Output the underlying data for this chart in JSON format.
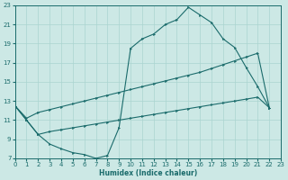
{
  "bg_color": "#cce8e5",
  "grid_color": "#aad4d0",
  "line_color": "#1a6b6b",
  "xlabel": "Humidex (Indice chaleur)",
  "xlim": [
    0,
    23
  ],
  "ylim": [
    7,
    23
  ],
  "xticks": [
    0,
    1,
    2,
    3,
    4,
    5,
    6,
    7,
    8,
    9,
    10,
    11,
    12,
    13,
    14,
    15,
    16,
    17,
    18,
    19,
    20,
    21,
    22,
    23
  ],
  "yticks": [
    7,
    9,
    11,
    13,
    15,
    17,
    19,
    21,
    23
  ],
  "curve_bell_x": [
    0,
    1,
    2,
    3,
    4,
    5,
    6,
    7,
    8,
    9,
    10,
    11,
    12,
    13,
    14,
    15,
    16,
    17,
    18,
    19,
    20,
    21,
    22
  ],
  "curve_bell_y": [
    12.5,
    11.0,
    9.5,
    8.5,
    8.0,
    7.6,
    7.4,
    7.0,
    7.3,
    10.2,
    18.5,
    19.5,
    20.0,
    21.0,
    21.5,
    22.8,
    22.0,
    21.2,
    19.5,
    18.6,
    16.5,
    14.5,
    12.3
  ],
  "curve_upper_linear_x": [
    0,
    1,
    2,
    3,
    4,
    5,
    6,
    7,
    8,
    9,
    10,
    11,
    12,
    13,
    14,
    15,
    16,
    17,
    18,
    19,
    20,
    21,
    22
  ],
  "curve_upper_linear_y": [
    12.5,
    11.2,
    11.8,
    12.1,
    12.4,
    12.7,
    13.0,
    13.3,
    13.6,
    13.9,
    14.2,
    14.5,
    14.8,
    15.1,
    15.4,
    15.7,
    16.0,
    16.4,
    16.8,
    17.2,
    17.6,
    18.0,
    12.3
  ],
  "curve_lower_linear_x": [
    0,
    1,
    2,
    3,
    4,
    5,
    6,
    7,
    8,
    9,
    10,
    11,
    12,
    13,
    14,
    15,
    16,
    17,
    18,
    19,
    20,
    21,
    22
  ],
  "curve_lower_linear_y": [
    12.5,
    11.0,
    9.5,
    9.8,
    10.0,
    10.2,
    10.4,
    10.6,
    10.8,
    11.0,
    11.2,
    11.4,
    11.6,
    11.8,
    12.0,
    12.2,
    12.4,
    12.6,
    12.8,
    13.0,
    13.2,
    13.4,
    12.3
  ]
}
